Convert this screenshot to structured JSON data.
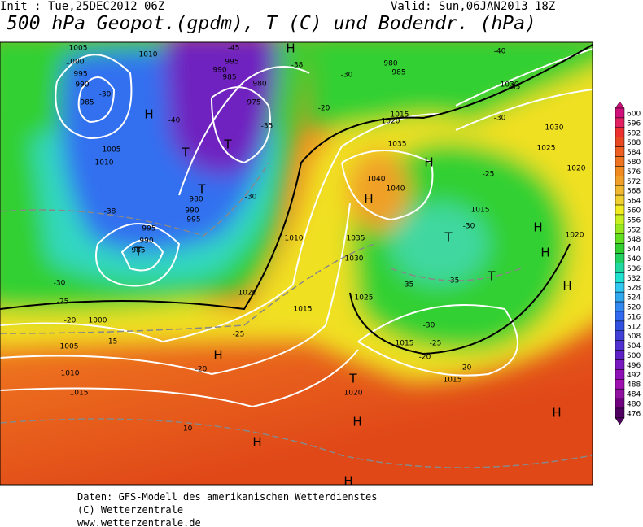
{
  "header": {
    "init": "Init : Tue,25DEC2012 06Z",
    "valid": "Valid: Sun,06JAN2013 18Z",
    "title": "500 hPa Geopot.(gpdm), T (C) und Bodendr. (hPa)"
  },
  "colorbar": {
    "levels": [
      600,
      596,
      592,
      588,
      584,
      580,
      576,
      572,
      568,
      564,
      560,
      556,
      552,
      548,
      544,
      540,
      536,
      532,
      528,
      524,
      520,
      516,
      512,
      508,
      504,
      500,
      496,
      492,
      488,
      484,
      480,
      476
    ],
    "colors": [
      "#d0107a",
      "#e02060",
      "#ec3030",
      "#e84820",
      "#ee5e20",
      "#f07420",
      "#f08a20",
      "#f0a028",
      "#f0b830",
      "#f0d030",
      "#f0ec20",
      "#c8f020",
      "#98e820",
      "#60e020",
      "#30d030",
      "#20d060",
      "#20d8a0",
      "#20e0d0",
      "#30c8f0",
      "#30a8f0",
      "#3088f0",
      "#3068f0",
      "#3050e0",
      "#4040d8",
      "#5030d0",
      "#6020c8",
      "#7818c0",
      "#9010b8",
      "#a010b0",
      "#9010a0",
      "#700080",
      "#500060"
    ]
  },
  "map": {
    "labels": [
      "H",
      "T",
      "T",
      "T",
      "T",
      "H",
      "H",
      "H",
      "T",
      "H",
      "H",
      "T",
      "H",
      "H",
      "T",
      "H",
      "H",
      "H",
      "H",
      "1005",
      "1000",
      "995",
      "990",
      "985",
      "1010",
      "995",
      "990",
      "985",
      "980",
      "975",
      "1005",
      "1010",
      "980",
      "990",
      "995",
      "995",
      "990",
      "985",
      "1000",
      "1005",
      "1010",
      "1015",
      "1020",
      "1015",
      "1010",
      "1035",
      "1030",
      "1025",
      "1035",
      "1040",
      "1040",
      "1015",
      "1020",
      "1030",
      "1030",
      "1025",
      "1020",
      "1015",
      "1015",
      "1020",
      "980",
      "985",
      "1015",
      "1020",
      "-45",
      "-40",
      "-35",
      "-30",
      "-25",
      "-40",
      "-35",
      "-30",
      "-38",
      "-30",
      "-25",
      "-20",
      "-15",
      "-25",
      "-20",
      "-10",
      "-30",
      "-35",
      "-35",
      "-30",
      "-25",
      "-20",
      "-20",
      "-30",
      "-20",
      "-30",
      "-38"
    ]
  },
  "footer": [
    "Daten: GFS-Modell des amerikanischen Wetterdienstes",
    "(C) Wetterzentrale",
    "www.wetterzentrale.de"
  ]
}
